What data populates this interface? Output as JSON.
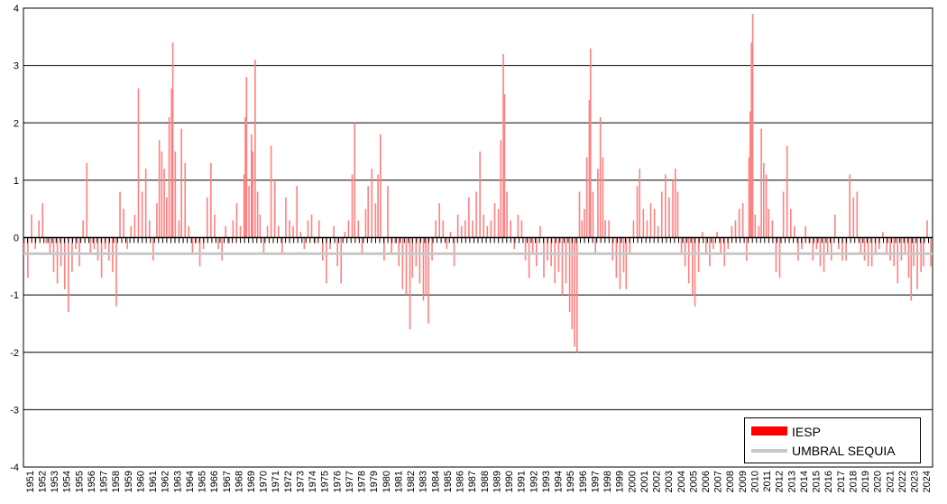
{
  "chart_data": {
    "type": "bar",
    "title": "",
    "xlabel": "",
    "ylabel": "",
    "ylim": [
      -4,
      4
    ],
    "yticks": [
      "4",
      "3",
      "2",
      "1",
      "0",
      "-1",
      "-2",
      "-3",
      "-4"
    ],
    "grid": "horizontal",
    "x_range": [
      1951,
      2024
    ],
    "x_tick_labels": [
      "1951",
      "1952",
      "1953",
      "1954",
      "1955",
      "1956",
      "1957",
      "1958",
      "1959",
      "1960",
      "1961",
      "1962",
      "1963",
      "1964",
      "1965",
      "1966",
      "1967",
      "1968",
      "1969",
      "1970",
      "1971",
      "1972",
      "1973",
      "1974",
      "1975",
      "1976",
      "1977",
      "1978",
      "1979",
      "1980",
      "1981",
      "1982",
      "1983",
      "1984",
      "1985",
      "1986",
      "1987",
      "1988",
      "1989",
      "1990",
      "1991",
      "1992",
      "1993",
      "1994",
      "1995",
      "1996",
      "1997",
      "1998",
      "1999",
      "2000",
      "2001",
      "2002",
      "2003",
      "2004",
      "2005",
      "2006",
      "2007",
      "2008",
      "2009",
      "2010",
      "2011",
      "2012",
      "2013",
      "2014",
      "2015",
      "2016",
      "2017",
      "2018",
      "2019",
      "2020",
      "2021",
      "2022",
      "2023",
      "2024"
    ],
    "legend_position": "bottom-right",
    "series": [
      {
        "name": "IESP",
        "color": "#ff8080",
        "legend_color": "#ff0000",
        "style": "bars",
        "points": [
          [
            1951.0,
            -0.3
          ],
          [
            1951.3,
            -0.7
          ],
          [
            1951.6,
            0.4
          ],
          [
            1951.9,
            -0.2
          ],
          [
            1952.2,
            0.3
          ],
          [
            1952.5,
            0.6
          ],
          [
            1952.8,
            -0.1
          ],
          [
            1953.1,
            -0.3
          ],
          [
            1953.4,
            -0.6
          ],
          [
            1953.7,
            -0.8
          ],
          [
            1954.0,
            -0.5
          ],
          [
            1954.3,
            -0.9
          ],
          [
            1954.6,
            -1.3
          ],
          [
            1954.9,
            -0.6
          ],
          [
            1955.2,
            -0.2
          ],
          [
            1955.5,
            -0.5
          ],
          [
            1955.8,
            0.3
          ],
          [
            1956.1,
            1.3
          ],
          [
            1956.4,
            -0.3
          ],
          [
            1956.7,
            -0.2
          ],
          [
            1957.0,
            -0.4
          ],
          [
            1957.3,
            -0.7
          ],
          [
            1957.6,
            -0.2
          ],
          [
            1957.9,
            -0.4
          ],
          [
            1958.2,
            -0.6
          ],
          [
            1958.5,
            -1.2
          ],
          [
            1958.8,
            0.8
          ],
          [
            1959.1,
            0.5
          ],
          [
            1959.4,
            -0.2
          ],
          [
            1959.7,
            0.2
          ],
          [
            1960.0,
            0.4
          ],
          [
            1960.3,
            2.6
          ],
          [
            1960.6,
            0.8
          ],
          [
            1960.9,
            1.2
          ],
          [
            1961.2,
            0.3
          ],
          [
            1961.5,
            -0.4
          ],
          [
            1961.8,
            0.6
          ],
          [
            1962.0,
            1.7
          ],
          [
            1962.2,
            1.5
          ],
          [
            1962.4,
            1.2
          ],
          [
            1962.6,
            0.7
          ],
          [
            1962.8,
            2.1
          ],
          [
            1963.0,
            2.6
          ],
          [
            1963.1,
            3.4
          ],
          [
            1963.3,
            1.5
          ],
          [
            1963.6,
            0.3
          ],
          [
            1963.8,
            1.9
          ],
          [
            1964.1,
            1.3
          ],
          [
            1964.4,
            0.2
          ],
          [
            1964.7,
            -0.3
          ],
          [
            1965.0,
            -0.1
          ],
          [
            1965.3,
            -0.5
          ],
          [
            1965.6,
            -0.2
          ],
          [
            1965.9,
            0.7
          ],
          [
            1966.2,
            1.3
          ],
          [
            1966.5,
            0.4
          ],
          [
            1966.8,
            -0.2
          ],
          [
            1967.1,
            -0.4
          ],
          [
            1967.4,
            0.2
          ],
          [
            1967.7,
            -0.1
          ],
          [
            1968.0,
            0.3
          ],
          [
            1968.3,
            0.6
          ],
          [
            1968.6,
            0.2
          ],
          [
            1968.9,
            1.1
          ],
          [
            1969.0,
            2.1
          ],
          [
            1969.1,
            2.8
          ],
          [
            1969.3,
            0.9
          ],
          [
            1969.5,
            1.8
          ],
          [
            1969.6,
            1.5
          ],
          [
            1969.8,
            3.1
          ],
          [
            1970.0,
            0.8
          ],
          [
            1970.2,
            0.4
          ],
          [
            1970.5,
            -0.3
          ],
          [
            1970.8,
            0.2
          ],
          [
            1971.1,
            1.6
          ],
          [
            1971.4,
            1.0
          ],
          [
            1971.7,
            0.2
          ],
          [
            1972.0,
            -0.3
          ],
          [
            1972.3,
            0.7
          ],
          [
            1972.6,
            0.3
          ],
          [
            1972.9,
            0.2
          ],
          [
            1973.2,
            0.9
          ],
          [
            1973.5,
            0.1
          ],
          [
            1973.8,
            -0.2
          ],
          [
            1974.1,
            0.3
          ],
          [
            1974.4,
            0.4
          ],
          [
            1974.7,
            -0.1
          ],
          [
            1975.0,
            0.3
          ],
          [
            1975.3,
            -0.4
          ],
          [
            1975.6,
            -0.8
          ],
          [
            1975.9,
            -0.2
          ],
          [
            1976.2,
            0.2
          ],
          [
            1976.5,
            -0.5
          ],
          [
            1976.8,
            -0.8
          ],
          [
            1977.1,
            0.1
          ],
          [
            1977.4,
            0.3
          ],
          [
            1977.7,
            1.1
          ],
          [
            1977.9,
            2.0
          ],
          [
            1978.2,
            0.3
          ],
          [
            1978.5,
            -0.3
          ],
          [
            1978.8,
            0.5
          ],
          [
            1979.0,
            0.9
          ],
          [
            1979.3,
            1.2
          ],
          [
            1979.6,
            0.6
          ],
          [
            1979.8,
            1.1
          ],
          [
            1980.0,
            1.8
          ],
          [
            1980.3,
            -0.4
          ],
          [
            1980.6,
            0.9
          ],
          [
            1980.9,
            -0.3
          ],
          [
            1981.2,
            -0.1
          ],
          [
            1981.5,
            -0.5
          ],
          [
            1981.8,
            -0.9
          ],
          [
            1982.1,
            -1.0
          ],
          [
            1982.4,
            -1.6
          ],
          [
            1982.6,
            -0.7
          ],
          [
            1982.9,
            -0.5
          ],
          [
            1983.2,
            -0.8
          ],
          [
            1983.5,
            -1.1
          ],
          [
            1983.7,
            -1.0
          ],
          [
            1983.9,
            -1.5
          ],
          [
            1984.2,
            -0.4
          ],
          [
            1984.5,
            0.3
          ],
          [
            1984.8,
            0.6
          ],
          [
            1985.1,
            0.3
          ],
          [
            1985.4,
            -0.2
          ],
          [
            1985.7,
            0.1
          ],
          [
            1986.0,
            -0.5
          ],
          [
            1986.3,
            0.4
          ],
          [
            1986.6,
            0.2
          ],
          [
            1986.9,
            0.3
          ],
          [
            1987.2,
            0.7
          ],
          [
            1987.5,
            0.3
          ],
          [
            1987.8,
            0.8
          ],
          [
            1988.1,
            1.5
          ],
          [
            1988.4,
            0.4
          ],
          [
            1988.7,
            0.2
          ],
          [
            1989.0,
            0.3
          ],
          [
            1989.3,
            0.6
          ],
          [
            1989.6,
            0.5
          ],
          [
            1989.8,
            1.7
          ],
          [
            1990.0,
            3.2
          ],
          [
            1990.1,
            2.5
          ],
          [
            1990.3,
            0.8
          ],
          [
            1990.6,
            0.3
          ],
          [
            1990.9,
            -0.2
          ],
          [
            1991.2,
            0.4
          ],
          [
            1991.5,
            0.3
          ],
          [
            1991.8,
            -0.4
          ],
          [
            1992.1,
            -0.7
          ],
          [
            1992.4,
            -0.3
          ],
          [
            1992.7,
            -0.5
          ],
          [
            1993.0,
            0.2
          ],
          [
            1993.3,
            -0.7
          ],
          [
            1993.6,
            -0.4
          ],
          [
            1993.9,
            -0.5
          ],
          [
            1994.2,
            -0.8
          ],
          [
            1994.5,
            -0.6
          ],
          [
            1994.8,
            -1.0
          ],
          [
            1995.1,
            -0.8
          ],
          [
            1995.4,
            -1.3
          ],
          [
            1995.6,
            -1.6
          ],
          [
            1995.8,
            -1.9
          ],
          [
            1996.0,
            -2.0
          ],
          [
            1996.2,
            0.8
          ],
          [
            1996.4,
            0.3
          ],
          [
            1996.6,
            0.5
          ],
          [
            1996.8,
            1.4
          ],
          [
            1997.0,
            2.4
          ],
          [
            1997.1,
            3.3
          ],
          [
            1997.3,
            0.8
          ],
          [
            1997.5,
            -0.3
          ],
          [
            1997.7,
            1.2
          ],
          [
            1997.9,
            2.1
          ],
          [
            1998.1,
            1.4
          ],
          [
            1998.3,
            0.3
          ],
          [
            1998.6,
            0.3
          ],
          [
            1998.9,
            -0.4
          ],
          [
            1999.2,
            -0.7
          ],
          [
            1999.5,
            -0.9
          ],
          [
            1999.8,
            -0.6
          ],
          [
            2000.0,
            -0.9
          ],
          [
            2000.3,
            -0.3
          ],
          [
            2000.6,
            0.3
          ],
          [
            2000.9,
            0.9
          ],
          [
            2001.1,
            1.2
          ],
          [
            2001.4,
            0.5
          ],
          [
            2001.7,
            0.3
          ],
          [
            2002.0,
            0.6
          ],
          [
            2002.3,
            0.5
          ],
          [
            2002.6,
            0.2
          ],
          [
            2002.9,
            0.8
          ],
          [
            2003.2,
            1.1
          ],
          [
            2003.5,
            0.7
          ],
          [
            2003.8,
            1.0
          ],
          [
            2004.0,
            1.2
          ],
          [
            2004.2,
            0.8
          ],
          [
            2004.5,
            -0.3
          ],
          [
            2004.8,
            -0.5
          ],
          [
            2005.1,
            -0.8
          ],
          [
            2005.4,
            -1.0
          ],
          [
            2005.6,
            -1.2
          ],
          [
            2005.9,
            -0.6
          ],
          [
            2006.2,
            0.1
          ],
          [
            2006.5,
            -0.3
          ],
          [
            2006.8,
            -0.5
          ],
          [
            2007.1,
            -0.2
          ],
          [
            2007.4,
            0.1
          ],
          [
            2007.7,
            -0.3
          ],
          [
            2008.0,
            -0.5
          ],
          [
            2008.3,
            -0.2
          ],
          [
            2008.6,
            0.2
          ],
          [
            2008.9,
            0.3
          ],
          [
            2009.2,
            0.5
          ],
          [
            2009.5,
            0.6
          ],
          [
            2009.8,
            -0.4
          ],
          [
            2010.0,
            1.4
          ],
          [
            2010.1,
            2.2
          ],
          [
            2010.2,
            3.4
          ],
          [
            2010.3,
            3.9
          ],
          [
            2010.5,
            0.4
          ],
          [
            2010.8,
            0.2
          ],
          [
            2011.0,
            1.9
          ],
          [
            2011.2,
            1.3
          ],
          [
            2011.4,
            1.1
          ],
          [
            2011.6,
            0.5
          ],
          [
            2011.9,
            0.3
          ],
          [
            2012.2,
            -0.6
          ],
          [
            2012.5,
            -0.7
          ],
          [
            2012.8,
            0.8
          ],
          [
            2013.1,
            1.6
          ],
          [
            2013.4,
            0.5
          ],
          [
            2013.7,
            0.2
          ],
          [
            2014.0,
            -0.4
          ],
          [
            2014.3,
            -0.2
          ],
          [
            2014.6,
            0.2
          ],
          [
            2014.9,
            -0.1
          ],
          [
            2015.2,
            -0.4
          ],
          [
            2015.5,
            -0.2
          ],
          [
            2015.8,
            -0.5
          ],
          [
            2016.1,
            -0.6
          ],
          [
            2016.4,
            -0.3
          ],
          [
            2016.7,
            -0.4
          ],
          [
            2017.0,
            0.4
          ],
          [
            2017.3,
            -0.2
          ],
          [
            2017.6,
            -0.4
          ],
          [
            2017.9,
            -0.4
          ],
          [
            2018.2,
            1.1
          ],
          [
            2018.5,
            0.7
          ],
          [
            2018.8,
            0.8
          ],
          [
            2019.1,
            -0.3
          ],
          [
            2019.4,
            -0.4
          ],
          [
            2019.7,
            -0.5
          ],
          [
            2020.0,
            -0.5
          ],
          [
            2020.3,
            -0.3
          ],
          [
            2020.6,
            -0.2
          ],
          [
            2020.9,
            0.1
          ],
          [
            2021.2,
            -0.3
          ],
          [
            2021.5,
            -0.4
          ],
          [
            2021.8,
            -0.5
          ],
          [
            2022.1,
            -0.8
          ],
          [
            2022.4,
            -0.4
          ],
          [
            2022.7,
            -0.3
          ],
          [
            2023.0,
            -0.7
          ],
          [
            2023.2,
            -1.1
          ],
          [
            2023.4,
            -0.5
          ],
          [
            2023.7,
            -0.9
          ],
          [
            2024.0,
            -0.6
          ],
          [
            2024.2,
            -0.5
          ],
          [
            2024.5,
            0.3
          ],
          [
            2024.8,
            -0.5
          ]
        ]
      },
      {
        "name": "UMBRAL SEQUIA",
        "color": "#c8c8c8",
        "style": "line",
        "value": -0.28
      }
    ]
  },
  "legend": {
    "items": [
      {
        "label": "IESP",
        "color": "#ff0000"
      },
      {
        "label": "UMBRAL SEQUIA",
        "color": "#c8c8c8"
      }
    ]
  }
}
